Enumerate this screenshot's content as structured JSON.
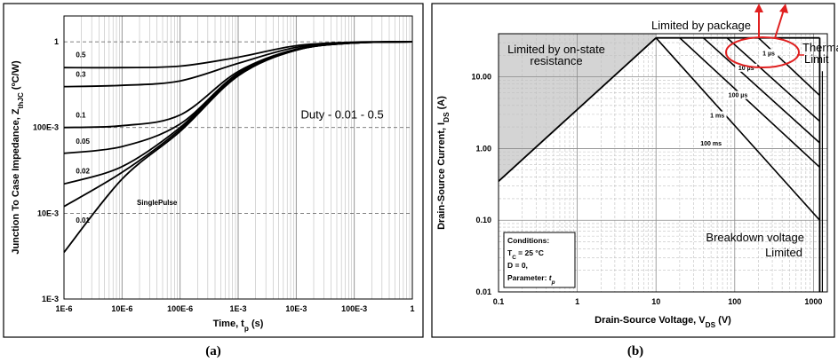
{
  "chart_data": [
    {
      "id": "a",
      "type": "line",
      "caption": "(a)",
      "xlabel": "Time, t",
      "xlabel_sub": "p",
      "xlabel_unit": " (s)",
      "ylabel": "Junction To Case Impedance, Z",
      "ylabel_sub": "thJC",
      "ylabel_unit": " (ºC/W)",
      "xscale": "log",
      "yscale": "log",
      "xlim": [
        1e-06,
        1
      ],
      "ylim": [
        0.001,
        2
      ],
      "x_ticks": [
        {
          "v": 1e-06,
          "label": "1E-6"
        },
        {
          "v": 1e-05,
          "label": "10E-6"
        },
        {
          "v": 0.0001,
          "label": "100E-6"
        },
        {
          "v": 0.001,
          "label": "1E-3"
        },
        {
          "v": 0.01,
          "label": "10E-3"
        },
        {
          "v": 0.1,
          "label": "100E-3"
        },
        {
          "v": 1,
          "label": "1"
        }
      ],
      "y_ticks": [
        {
          "v": 0.001,
          "label": "1E-3"
        },
        {
          "v": 0.01,
          "label": "10E-3"
        },
        {
          "v": 0.1,
          "label": "100E-3"
        },
        {
          "v": 1,
          "label": "1"
        }
      ],
      "annotation": "Duty - 0.01 - 0.5",
      "series": [
        {
          "label": "0.5",
          "points": [
            [
              1e-06,
              0.5
            ],
            [
              1e-05,
              0.5
            ],
            [
              0.0001,
              0.52
            ],
            [
              0.001,
              0.66
            ],
            [
              0.01,
              0.9
            ],
            [
              0.1,
              0.99
            ],
            [
              1,
              1
            ]
          ]
        },
        {
          "label": "0.3",
          "points": [
            [
              1e-06,
              0.3
            ],
            [
              1e-05,
              0.31
            ],
            [
              0.0001,
              0.35
            ],
            [
              0.001,
              0.56
            ],
            [
              0.01,
              0.86
            ],
            [
              0.1,
              0.98
            ],
            [
              1,
              1
            ]
          ]
        },
        {
          "label": "0.1",
          "points": [
            [
              1e-06,
              0.1
            ],
            [
              1e-05,
              0.105
            ],
            [
              0.0001,
              0.14
            ],
            [
              0.001,
              0.45
            ],
            [
              0.01,
              0.82
            ],
            [
              0.1,
              0.97
            ],
            [
              1,
              1
            ]
          ]
        },
        {
          "label": "0.05",
          "points": [
            [
              1e-06,
              0.05
            ],
            [
              1e-05,
              0.06
            ],
            [
              0.0001,
              0.11
            ],
            [
              0.001,
              0.43
            ],
            [
              0.01,
              0.81
            ],
            [
              0.1,
              0.97
            ],
            [
              1,
              1
            ]
          ]
        },
        {
          "label": "0.02",
          "points": [
            [
              1e-06,
              0.022
            ],
            [
              1e-05,
              0.035
            ],
            [
              0.0001,
              0.1
            ],
            [
              0.001,
              0.42
            ],
            [
              0.01,
              0.8
            ],
            [
              0.1,
              0.97
            ],
            [
              1,
              1
            ]
          ]
        },
        {
          "label": "0.01",
          "points": [
            [
              1e-06,
              0.012
            ],
            [
              1e-05,
              0.03
            ],
            [
              0.0001,
              0.095
            ],
            [
              0.001,
              0.41
            ],
            [
              0.01,
              0.8
            ],
            [
              0.1,
              0.97
            ],
            [
              1,
              1
            ]
          ]
        },
        {
          "label": "SinglePulse",
          "points": [
            [
              1e-06,
              0.0035
            ],
            [
              1e-05,
              0.025
            ],
            [
              0.0001,
              0.09
            ],
            [
              0.001,
              0.4
            ],
            [
              0.01,
              0.8
            ],
            [
              0.1,
              0.97
            ],
            [
              1,
              1
            ]
          ]
        }
      ]
    },
    {
      "id": "b",
      "type": "line",
      "caption": "(b)",
      "xlabel": "Drain-Source Voltage, V",
      "xlabel_sub": "DS",
      "xlabel_unit": " (V)",
      "ylabel": "Drain-Source Current, I",
      "ylabel_sub": "DS",
      "ylabel_unit": " (A)",
      "xscale": "log",
      "yscale": "log",
      "xlim": [
        0.1,
        1500
      ],
      "ylim": [
        0.01,
        40
      ],
      "x_ticks": [
        {
          "v": 0.1,
          "label": "0.1"
        },
        {
          "v": 1,
          "label": "1"
        },
        {
          "v": 10,
          "label": "10"
        },
        {
          "v": 100,
          "label": "100"
        },
        {
          "v": 1000,
          "label": "1000"
        }
      ],
      "y_ticks": [
        {
          "v": 0.01,
          "label": "0.01"
        },
        {
          "v": 0.1,
          "label": "0.10"
        },
        {
          "v": 1,
          "label": "1.00"
        },
        {
          "v": 10,
          "label": "10.00"
        }
      ],
      "annotations": {
        "package": "Limited by package",
        "on_state_1": "Limited by on-state",
        "on_state_2": "resistance",
        "thermal_1": "Therma",
        "thermal_2": "Limit",
        "breakdown_1": "Breakdown voltage",
        "breakdown_2": "Limited"
      },
      "conditions": {
        "title": "Conditions:",
        "tc_prefix": "T",
        "tc_sub": "C",
        "tc_value": " = 25 °C",
        "duty": "D = 0,",
        "param": "Parameter: ",
        "param_var": "t",
        "param_sub": "p"
      },
      "rds_on_line": [
        [
          0.1,
          0.35
        ],
        [
          10,
          35
        ]
      ],
      "package_limit": 35,
      "breakdown_voltage": 1200,
      "series": [
        {
          "label": "1 µs",
          "points": [
            [
              200,
              35
            ],
            [
              1200,
              5.5
            ]
          ]
        },
        {
          "label": "10 µs",
          "points": [
            [
              80,
              35
            ],
            [
              1200,
              2.4
            ]
          ]
        },
        {
          "label": "100 µs",
          "points": [
            [
              40,
              35
            ],
            [
              1200,
              1.2
            ]
          ]
        },
        {
          "label": "1 ms",
          "points": [
            [
              20,
              35
            ],
            [
              1200,
              0.55
            ]
          ]
        },
        {
          "label": "100 ms",
          "points": [
            [
              10,
              35
            ],
            [
              1200,
              0.1
            ]
          ]
        }
      ],
      "highlight_color": "#e02020",
      "shade_color": "#d4d4d4"
    }
  ]
}
